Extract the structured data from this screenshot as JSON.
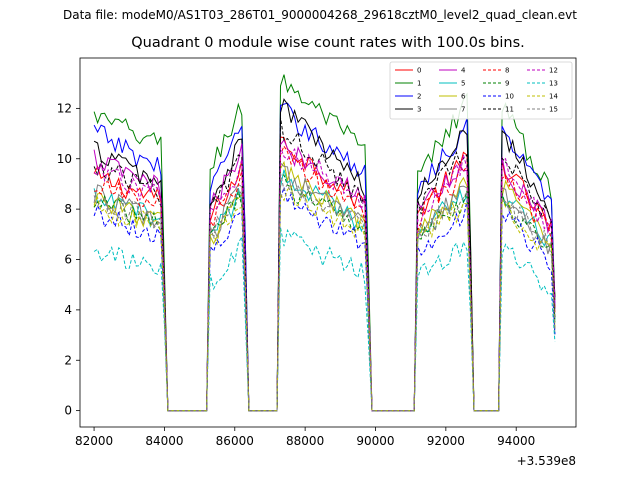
{
  "suptitle": "Data file: modeM0/AS1T03_286T01_9000004268_29618cztM0_level2_quad_clean.evt",
  "chart_data": {
    "type": "line",
    "title": "Quadrant 0 module wise count rates with 100.0s bins.",
    "xlabel": "",
    "ylabel": "",
    "x_offset_label": "+3.539e8",
    "xlim": [
      81600,
      95700
    ],
    "ylim": [
      -0.65,
      14
    ],
    "xticks": [
      82000,
      84000,
      86000,
      88000,
      90000,
      92000,
      94000
    ],
    "xtick_labels": [
      "82000",
      "84000",
      "86000",
      "88000",
      "90000",
      "92000",
      "94000"
    ],
    "yticks": [
      0,
      2,
      4,
      6,
      8,
      10,
      12
    ],
    "ytick_labels": [
      "0",
      "2",
      "4",
      "6",
      "8",
      "10",
      "12"
    ],
    "legend_position": "top-right",
    "segments": [
      {
        "start": 82000,
        "end": 84000,
        "shape": "decline"
      },
      {
        "start": 85300,
        "end": 86300,
        "shape": "rise"
      },
      {
        "start": 87300,
        "end": 89800,
        "shape": "decline"
      },
      {
        "start": 91200,
        "end": 92700,
        "shape": "rise"
      },
      {
        "start": 93600,
        "end": 95100,
        "shape": "decline"
      }
    ],
    "series": [
      {
        "name": "0",
        "color": "#ff0000",
        "dashed": false,
        "levels": [
          9.3,
          8.3,
          10.7,
          7.8
        ]
      },
      {
        "name": "1",
        "color": "#008000",
        "dashed": false,
        "levels": [
          11.7,
          10.5,
          13.2,
          9.2
        ]
      },
      {
        "name": "2",
        "color": "#0000ff",
        "dashed": false,
        "levels": [
          11.1,
          9.5,
          12.0,
          8.9
        ]
      },
      {
        "name": "3",
        "color": "#000000",
        "dashed": false,
        "levels": [
          10.4,
          8.9,
          12.2,
          8.4
        ]
      },
      {
        "name": "4",
        "color": "#bf00bf",
        "dashed": false,
        "levels": [
          10.0,
          8.7,
          10.5,
          8.0
        ]
      },
      {
        "name": "5",
        "color": "#00bfbf",
        "dashed": false,
        "levels": [
          8.4,
          7.6,
          9.3,
          7.2
        ]
      },
      {
        "name": "6",
        "color": "#bfbf00",
        "dashed": false,
        "levels": [
          8.5,
          7.4,
          9.6,
          7.1
        ]
      },
      {
        "name": "7",
        "color": "#808080",
        "dashed": false,
        "levels": [
          8.6,
          7.5,
          9.4,
          7.0
        ]
      },
      {
        "name": "8",
        "color": "#ff0000",
        "dashed": true,
        "levels": [
          9.0,
          8.0,
          10.2,
          7.6
        ]
      },
      {
        "name": "9",
        "color": "#008000",
        "dashed": true,
        "levels": [
          8.3,
          7.4,
          9.0,
          7.0
        ]
      },
      {
        "name": "10",
        "color": "#0000ff",
        "dashed": true,
        "levels": [
          7.9,
          6.8,
          8.5,
          6.4
        ]
      },
      {
        "name": "11",
        "color": "#000000",
        "dashed": true,
        "levels": [
          9.8,
          8.5,
          11.3,
          8.0
        ]
      },
      {
        "name": "12",
        "color": "#bf00bf",
        "dashed": true,
        "levels": [
          9.5,
          8.4,
          10.6,
          7.8
        ]
      },
      {
        "name": "13",
        "color": "#00bfbf",
        "dashed": true,
        "levels": [
          6.3,
          5.5,
          7.0,
          5.2
        ]
      },
      {
        "name": "14",
        "color": "#bfbf00",
        "dashed": true,
        "levels": [
          8.1,
          7.2,
          8.8,
          6.8
        ]
      },
      {
        "name": "15",
        "color": "#808080",
        "dashed": true,
        "levels": [
          8.4,
          7.5,
          9.2,
          7.0
        ]
      }
    ]
  }
}
